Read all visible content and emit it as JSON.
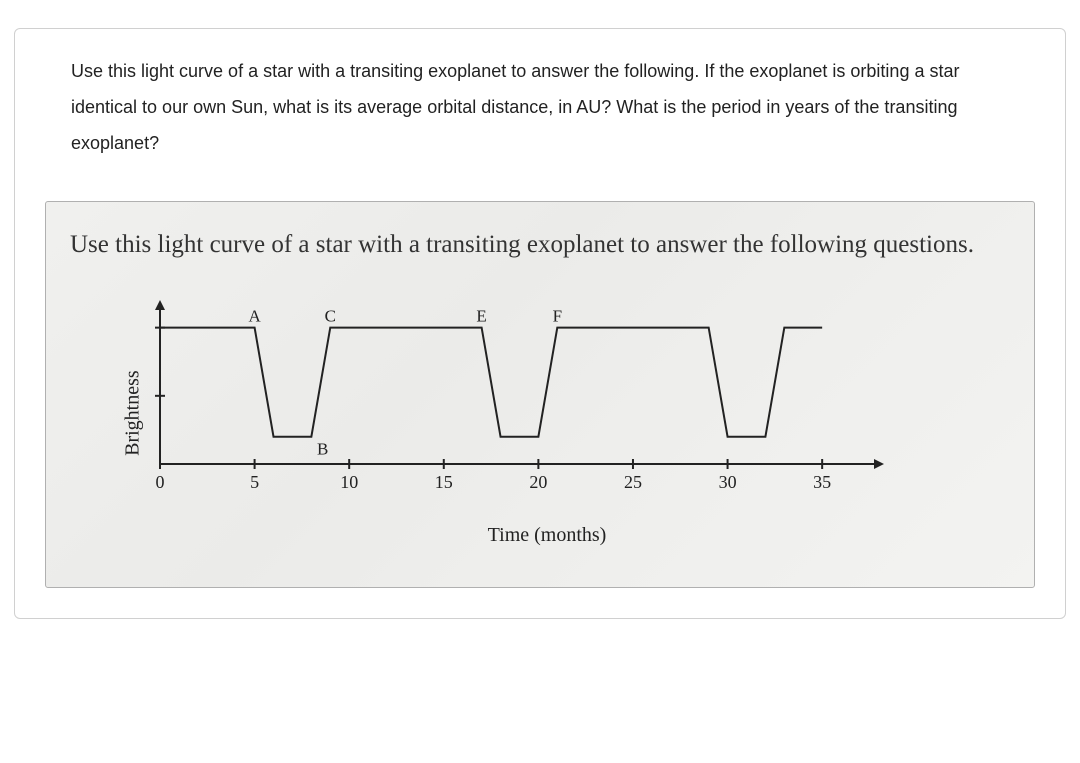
{
  "question": "Use this light curve of a star with a transiting exoplanet to answer the following. If the exoplanet is orbiting a star identical to our own Sun, what is its average orbital distance, in AU? What is the period in years of the transiting exoplanet?",
  "figure": {
    "title": "Use this light curve of a star with a transiting exoplanet to answer the following questions.",
    "ylabel": "Brightness",
    "xlabel": "Time (months)",
    "chart": {
      "type": "line",
      "x_range": [
        0,
        37
      ],
      "x_ticks": [
        0,
        5,
        10,
        15,
        20,
        25,
        30,
        35
      ],
      "x_tick_labels": [
        "0",
        "5",
        "10",
        "15",
        "20",
        "25",
        "30",
        "35"
      ],
      "curve_points": [
        [
          0,
          100
        ],
        [
          5,
          100
        ],
        [
          6,
          20
        ],
        [
          8,
          20
        ],
        [
          9,
          100
        ],
        [
          17,
          100
        ],
        [
          18,
          20
        ],
        [
          20,
          20
        ],
        [
          21,
          100
        ],
        [
          29,
          100
        ],
        [
          30,
          20
        ],
        [
          32,
          20
        ],
        [
          33,
          100
        ],
        [
          35,
          100
        ]
      ],
      "point_labels": [
        {
          "label": "A",
          "x": 5,
          "y_level": "top"
        },
        {
          "label": "B",
          "x": 8.6,
          "y_level": "bottom"
        },
        {
          "label": "C",
          "x": 9,
          "y_level": "top"
        },
        {
          "label": "E",
          "x": 17,
          "y_level": "top"
        },
        {
          "label": "F",
          "x": 21,
          "y_level": "top"
        }
      ],
      "axis_color": "#222222",
      "curve_color": "#222222",
      "stroke_width": 2,
      "background": "transparent"
    }
  }
}
